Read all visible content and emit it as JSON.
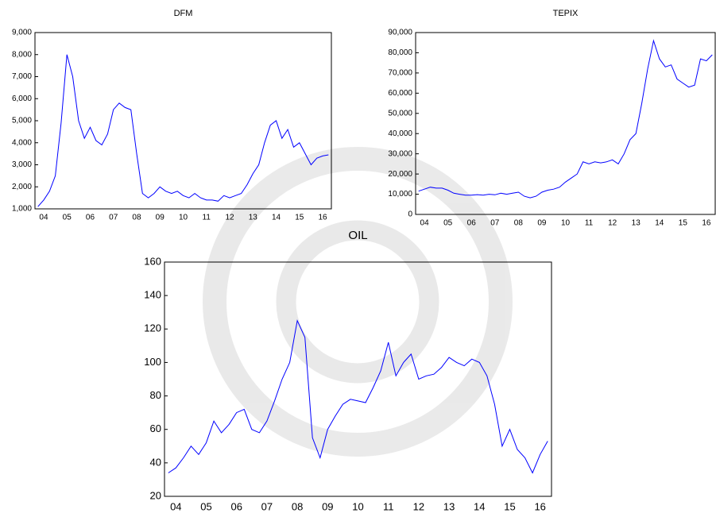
{
  "chart_data": [
    {
      "type": "line",
      "title": "DFM",
      "color": "#0000ff",
      "categories": [
        null,
        "04",
        null,
        null,
        null,
        "05",
        null,
        null,
        null,
        "06",
        null,
        null,
        null,
        "07",
        null,
        null,
        null,
        "08",
        null,
        null,
        null,
        "09",
        null,
        null,
        null,
        "10",
        null,
        null,
        null,
        "11",
        null,
        null,
        null,
        "12",
        null,
        null,
        null,
        "13",
        null,
        null,
        null,
        "14",
        null,
        null,
        null,
        "15",
        null,
        null,
        null,
        "16",
        null
      ],
      "values": [
        1100,
        1400,
        1800,
        2500,
        4900,
        8000,
        7000,
        5000,
        4200,
        4700,
        4100,
        3900,
        4400,
        5500,
        5800,
        5600,
        5500,
        3500,
        1700,
        1500,
        1700,
        2000,
        1800,
        1700,
        1800,
        1600,
        1500,
        1700,
        1500,
        1400,
        1400,
        1350,
        1600,
        1500,
        1600,
        1700,
        2100,
        2600,
        3000,
        4000,
        4800,
        5000,
        4200,
        4600,
        3800,
        4000,
        3500,
        3000,
        3300,
        3400,
        3450
      ],
      "ylim": [
        1000,
        9000
      ],
      "yticks": [
        {
          "value": 1000,
          "label": "1,000"
        },
        {
          "value": 2000,
          "label": "2,000"
        },
        {
          "value": 3000,
          "label": "3,000"
        },
        {
          "value": 4000,
          "label": "4,000"
        },
        {
          "value": 5000,
          "label": "5,000"
        },
        {
          "value": 6000,
          "label": "6,000"
        },
        {
          "value": 7000,
          "label": "7,000"
        },
        {
          "value": 8000,
          "label": "8,000"
        },
        {
          "value": 9000,
          "label": "9,000"
        }
      ]
    },
    {
      "type": "line",
      "title": "TEPIX",
      "color": "#0000ff",
      "categories": [
        null,
        "04",
        null,
        null,
        null,
        "05",
        null,
        null,
        null,
        "06",
        null,
        null,
        null,
        "07",
        null,
        null,
        null,
        "08",
        null,
        null,
        null,
        "09",
        null,
        null,
        null,
        "10",
        null,
        null,
        null,
        "11",
        null,
        null,
        null,
        "12",
        null,
        null,
        null,
        "13",
        null,
        null,
        null,
        "14",
        null,
        null,
        null,
        "15",
        null,
        null,
        null,
        "16",
        null
      ],
      "values": [
        11500,
        12500,
        13500,
        13000,
        13000,
        12000,
        10500,
        10000,
        9500,
        9500,
        9800,
        9500,
        10000,
        9700,
        10500,
        10000,
        10500,
        11000,
        9000,
        8200,
        9000,
        11000,
        12000,
        12500,
        13500,
        16000,
        18000,
        20000,
        26000,
        25000,
        26000,
        25500,
        26000,
        27000,
        25000,
        30000,
        37000,
        40000,
        55000,
        72000,
        86000,
        77000,
        73000,
        74000,
        67000,
        65000,
        63000,
        64000,
        77000,
        76000,
        79000
      ],
      "ylim": [
        0,
        90000
      ],
      "yticks": [
        0,
        {
          "value": 10000,
          "label": "10,000"
        },
        {
          "value": 20000,
          "label": "20,000"
        },
        {
          "value": 30000,
          "label": "30,000"
        },
        {
          "value": 40000,
          "label": "40,000"
        },
        {
          "value": 50000,
          "label": "50,000"
        },
        {
          "value": 60000,
          "label": "60,000"
        },
        {
          "value": 70000,
          "label": "70,000"
        },
        {
          "value": 80000,
          "label": "80,000"
        },
        {
          "value": 90000,
          "label": "90,000"
        }
      ]
    },
    {
      "type": "line",
      "title": "OIL",
      "color": "#0000ff",
      "categories": [
        null,
        "04",
        null,
        null,
        null,
        "05",
        null,
        null,
        null,
        "06",
        null,
        null,
        null,
        "07",
        null,
        null,
        null,
        "08",
        null,
        null,
        null,
        "09",
        null,
        null,
        null,
        "10",
        null,
        null,
        null,
        "11",
        null,
        null,
        null,
        "12",
        null,
        null,
        null,
        "13",
        null,
        null,
        null,
        "14",
        null,
        null,
        null,
        "15",
        null,
        null,
        null,
        "16",
        null
      ],
      "values": [
        34,
        37,
        43,
        50,
        45,
        52,
        65,
        58,
        63,
        70,
        72,
        60,
        58,
        65,
        77,
        90,
        100,
        125,
        115,
        55,
        43,
        60,
        68,
        75,
        78,
        77,
        76,
        85,
        95,
        112,
        92,
        100,
        105,
        90,
        92,
        93,
        97,
        103,
        100,
        98,
        102,
        100,
        92,
        75,
        50,
        60,
        48,
        43,
        34,
        45,
        53
      ],
      "ylim": [
        20,
        160
      ],
      "yticks": [
        20,
        40,
        60,
        80,
        100,
        120,
        140,
        160
      ]
    }
  ]
}
